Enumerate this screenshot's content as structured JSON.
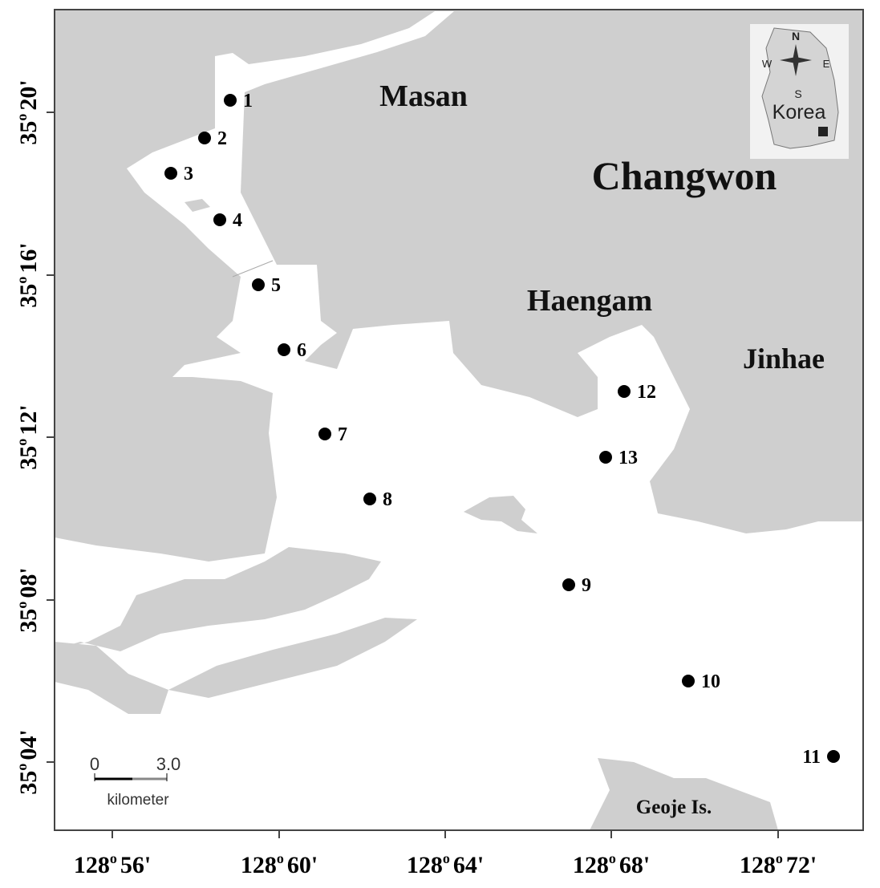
{
  "map": {
    "places": [
      "Masan",
      "Changwon",
      "Haengam",
      "Jinhae",
      "Geoje Is."
    ],
    "stations": [
      "1",
      "2",
      "3",
      "4",
      "5",
      "6",
      "7",
      "8",
      "9",
      "10",
      "11",
      "12",
      "13"
    ],
    "x_ticks": [
      {
        "degrees": "128",
        "sup": "o",
        "minutes": "56'"
      },
      {
        "degrees": "128",
        "sup": "o",
        "minutes": "60'"
      },
      {
        "degrees": "128",
        "sup": "o",
        "minutes": "64'"
      },
      {
        "degrees": "128",
        "sup": "o",
        "minutes": "68'"
      },
      {
        "degrees": "128",
        "sup": "o",
        "minutes": "72'"
      }
    ],
    "y_ticks": [
      {
        "degrees": "35",
        "sup": "o",
        "minutes": "20'"
      },
      {
        "degrees": "35",
        "sup": "o",
        "minutes": "16'"
      },
      {
        "degrees": "35",
        "sup": "o",
        "minutes": "12'"
      },
      {
        "degrees": "35",
        "sup": "o",
        "minutes": "08'"
      },
      {
        "degrees": "35",
        "sup": "o",
        "minutes": "04'"
      }
    ],
    "scale_bar": {
      "start": "0",
      "end": "3.0",
      "unit": "kilometer"
    },
    "inset": {
      "label": "Korea",
      "north": "N",
      "south": "S",
      "east": "E",
      "west": "W"
    }
  }
}
